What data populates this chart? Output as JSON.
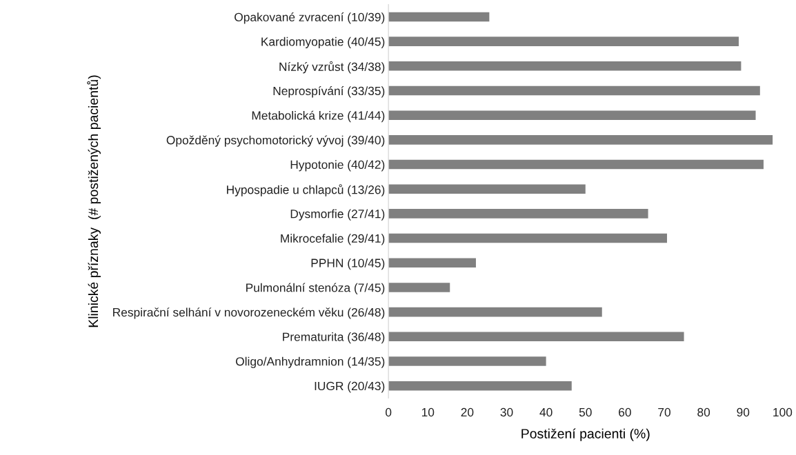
{
  "chart_data": {
    "type": "bar",
    "orientation": "horizontal",
    "xlabel": "Postižení pacienti (%)",
    "ylabel": "Klinické příznaky  (# postižených pacientů)",
    "categories": [
      "Opakované zvracení (10/39)",
      "Kardiomyopatie (40/45)",
      "Nízký vzrůst (34/38)",
      "Neprospívání (33/35)",
      "Metabolická krize (41/44)",
      "Opožděný psychomotorický vývoj (39/40)",
      "Hypotonie (40/42)",
      "Hypospadie u chlapců (13/26)",
      "Dysmorfie (27/41)",
      "Mikrocefalie (29/41)",
      "PPHN (10/45)",
      "Pulmonální stenóza (7/45)",
      "Respirační selhání v novorozeneckém věku (26/48)",
      "Prematurita (36/48)",
      "Oligo/Anhydramnion (14/35)",
      "IUGR (20/43)"
    ],
    "values": [
      25.6,
      88.9,
      89.5,
      94.3,
      93.2,
      97.5,
      95.2,
      50,
      65.9,
      70.7,
      22.2,
      15.6,
      54.2,
      75,
      40,
      46.5
    ],
    "color": "#808080",
    "xlim": [
      0,
      100
    ],
    "xticks": [
      0,
      10,
      20,
      30,
      40,
      50,
      60,
      70,
      80,
      90,
      100
    ],
    "grid": false
  }
}
